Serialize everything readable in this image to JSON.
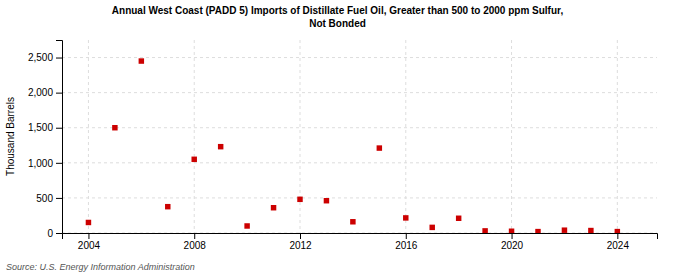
{
  "chart_data": {
    "type": "scatter",
    "title": "Annual West Coast (PADD 5) Imports of Distillate Fuel Oil, Greater than 500 to 2000 ppm Sulfur,",
    "subtitle": "Not Bonded",
    "ylabel": "Thousand Barrels",
    "source": "Source: U.S. Energy Information Administration",
    "color": "#cc0000",
    "marker": "square",
    "grid": true,
    "x": [
      2004,
      2005,
      2006,
      2007,
      2008,
      2009,
      2010,
      2011,
      2012,
      2013,
      2014,
      2015,
      2016,
      2017,
      2018,
      2019,
      2020,
      2021,
      2022,
      2023,
      2024
    ],
    "values": [
      150,
      1500,
      2450,
      375,
      1050,
      1230,
      100,
      360,
      480,
      460,
      160,
      1210,
      215,
      80,
      210,
      30,
      25,
      20,
      40,
      35,
      20
    ],
    "xlim": [
      2003,
      2025.5
    ],
    "xticks": [
      2004,
      2008,
      2012,
      2016,
      2020,
      2024
    ],
    "ylim": [
      0,
      2750
    ],
    "yticks": [
      0,
      500,
      {
        "value": 1000,
        "label": "1,000"
      },
      {
        "value": 1500,
        "label": "1,500"
      },
      {
        "value": 2000,
        "label": "2,000"
      },
      {
        "value": 2500,
        "label": "2,500"
      }
    ]
  }
}
